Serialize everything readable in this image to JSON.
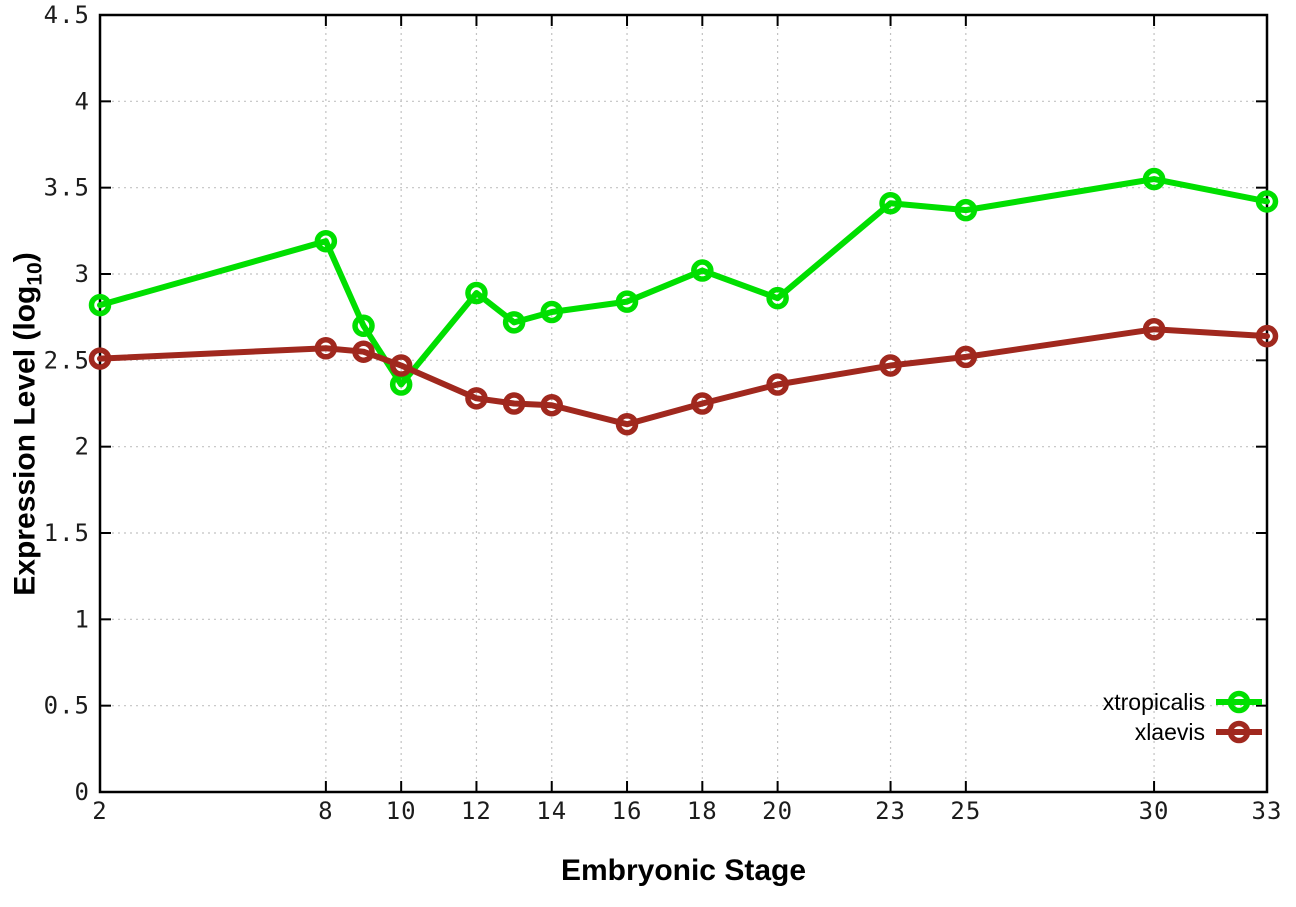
{
  "chart_data": {
    "type": "line",
    "title": "",
    "xlabel": "Embryonic Stage",
    "ylabel": "Expression Level (log10)",
    "ylabel_parts": {
      "main": "Expression Level (log",
      "sub": "10",
      "end": ")"
    },
    "xlim": [
      2,
      33
    ],
    "ylim": [
      0,
      4.5
    ],
    "x_ticks": [
      2,
      8,
      10,
      12,
      14,
      16,
      18,
      20,
      23,
      25,
      30,
      33
    ],
    "y_ticks": [
      0,
      0.5,
      1,
      1.5,
      2,
      2.5,
      3,
      3.5,
      4,
      4.5
    ],
    "grid": true,
    "legend_position": "bottom-right-inside",
    "x": [
      2,
      8,
      9,
      10,
      12,
      13,
      14,
      16,
      18,
      20,
      23,
      25,
      30,
      33
    ],
    "series": [
      {
        "name": "xtropicalis",
        "color": "#00df00",
        "marker": "open-circle",
        "values": [
          2.82,
          3.19,
          2.7,
          2.36,
          2.89,
          2.72,
          2.78,
          2.84,
          3.02,
          2.86,
          3.41,
          3.37,
          3.55,
          3.42
        ]
      },
      {
        "name": "xlaevis",
        "color": "#a0281e",
        "marker": "open-circle",
        "values": [
          2.51,
          2.57,
          2.55,
          2.47,
          2.28,
          2.25,
          2.24,
          2.13,
          2.25,
          2.36,
          2.47,
          2.52,
          2.68,
          2.64
        ]
      }
    ],
    "colors": {
      "grid": "#c2c2c2",
      "axis": "#000000",
      "tick_text": "#1c1c1c"
    }
  }
}
